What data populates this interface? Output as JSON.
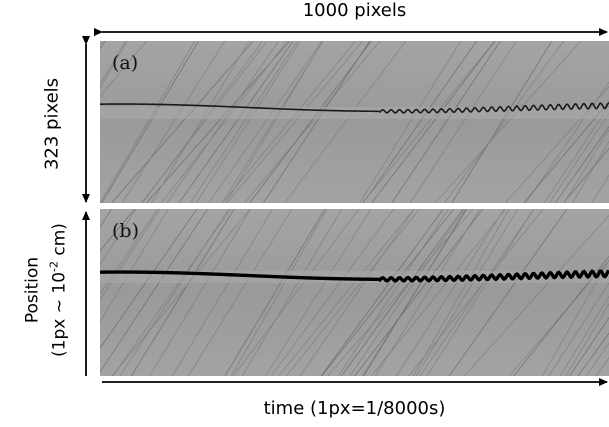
{
  "figure": {
    "width_label": "1000 pixels",
    "height_label": "323 pixels",
    "time_axis_label": "time (1px=1/8000s)",
    "position_axis_label_line1": "Position",
    "position_axis_label_line2_prefix": "(1px ~ 10",
    "position_axis_label_exponent": "-2",
    "position_axis_label_line2_suffix": " cm)"
  },
  "panels": [
    {
      "label": "(a)"
    },
    {
      "label": "(b)"
    }
  ]
}
